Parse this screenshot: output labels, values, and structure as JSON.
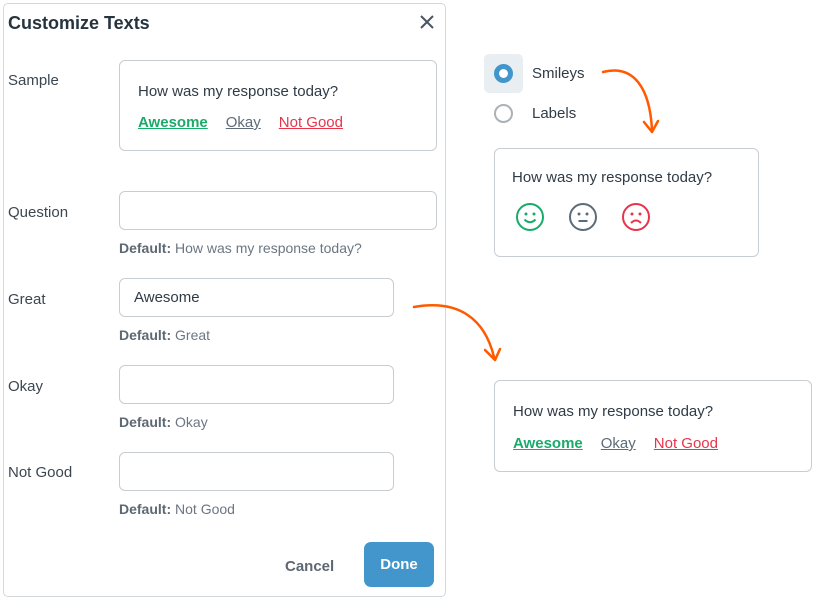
{
  "dialog": {
    "title": "Customize Texts",
    "close_icon": "close-icon",
    "sample_label": "Sample",
    "sample": {
      "question": "How was my response today?",
      "great": "Awesome",
      "okay": "Okay",
      "not_good": "Not Good"
    },
    "fields": [
      {
        "label": "Question",
        "value": "",
        "default_prefix": "Default:",
        "default": "How was my response today?"
      },
      {
        "label": "Great",
        "value": "Awesome",
        "default_prefix": "Default:",
        "default": "Great"
      },
      {
        "label": "Okay",
        "value": "",
        "default_prefix": "Default:",
        "default": "Okay"
      },
      {
        "label": "Not Good",
        "value": "",
        "default_prefix": "Default:",
        "default": "Not Good"
      }
    ],
    "cancel": "Cancel",
    "done": "Done"
  },
  "options": {
    "selected": "Smileys",
    "items": [
      {
        "label": "Smileys"
      },
      {
        "label": "Labels"
      }
    ]
  },
  "smiley_preview": {
    "question": "How was my response today?"
  },
  "labels_preview": {
    "question": "How was my response today?",
    "great": "Awesome",
    "okay": "Okay",
    "not_good": "Not Good"
  },
  "colors": {
    "accent": "#4296cb",
    "great": "#1aaa6a",
    "okay": "#5d6b78",
    "not_good": "#e8344a",
    "arrow": "#ff5a00"
  }
}
